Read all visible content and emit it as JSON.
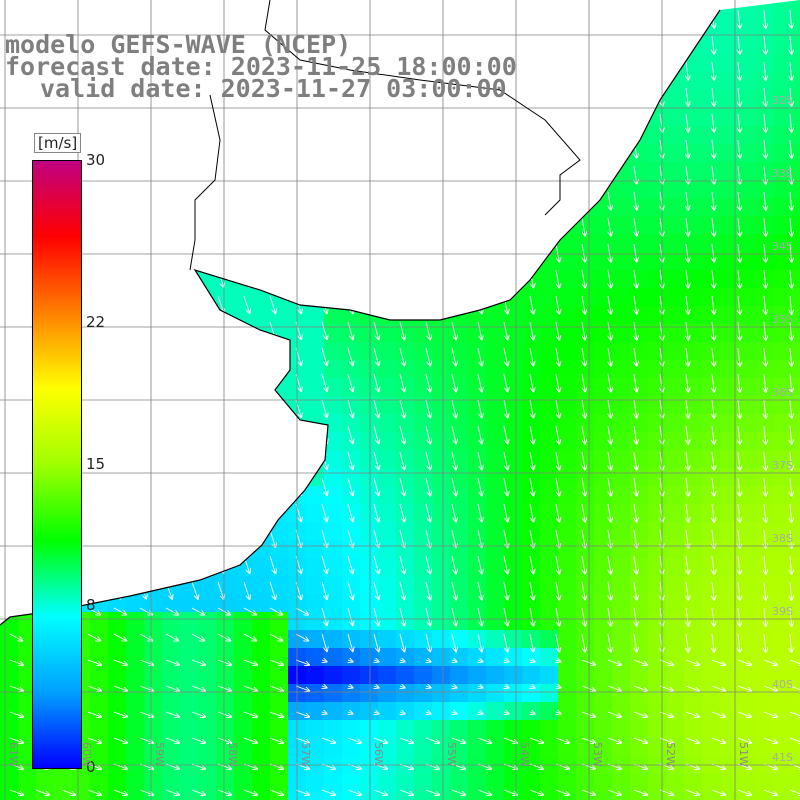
{
  "title": {
    "line1": "modelo GEFS-WAVE (NCEP)",
    "line2": "forecast date: 2023-11-25 18:00:00",
    "line3": "valid date: 2023-11-27 03:00:00"
  },
  "colorbar": {
    "units": "[m/s]",
    "ticks": [
      {
        "label": "30",
        "value": 30
      },
      {
        "label": "22",
        "value": 22
      },
      {
        "label": "15",
        "value": 15
      },
      {
        "label": "8",
        "value": 8
      },
      {
        "label": "0",
        "value": 0
      }
    ],
    "range": [
      0,
      30
    ],
    "stops": [
      "#0000ff",
      "#00a0ff",
      "#00ffff",
      "#00ff00",
      "#a0ff00",
      "#ffff00",
      "#ff8000",
      "#ff0000",
      "#c00080"
    ]
  },
  "axes": {
    "lon_labels": [
      "61W",
      "60W",
      "59W",
      "58W",
      "57W",
      "56W",
      "55W",
      "54W",
      "53W",
      "52W",
      "51W"
    ],
    "lat_labels": [
      "32S",
      "33S",
      "34S",
      "35S",
      "36S",
      "37S",
      "38S",
      "39S",
      "40S",
      "41S"
    ]
  },
  "colors": {
    "land": "#ffffff",
    "grid": "#808080",
    "coast": "#000000",
    "arrow": "#ffffff"
  }
}
